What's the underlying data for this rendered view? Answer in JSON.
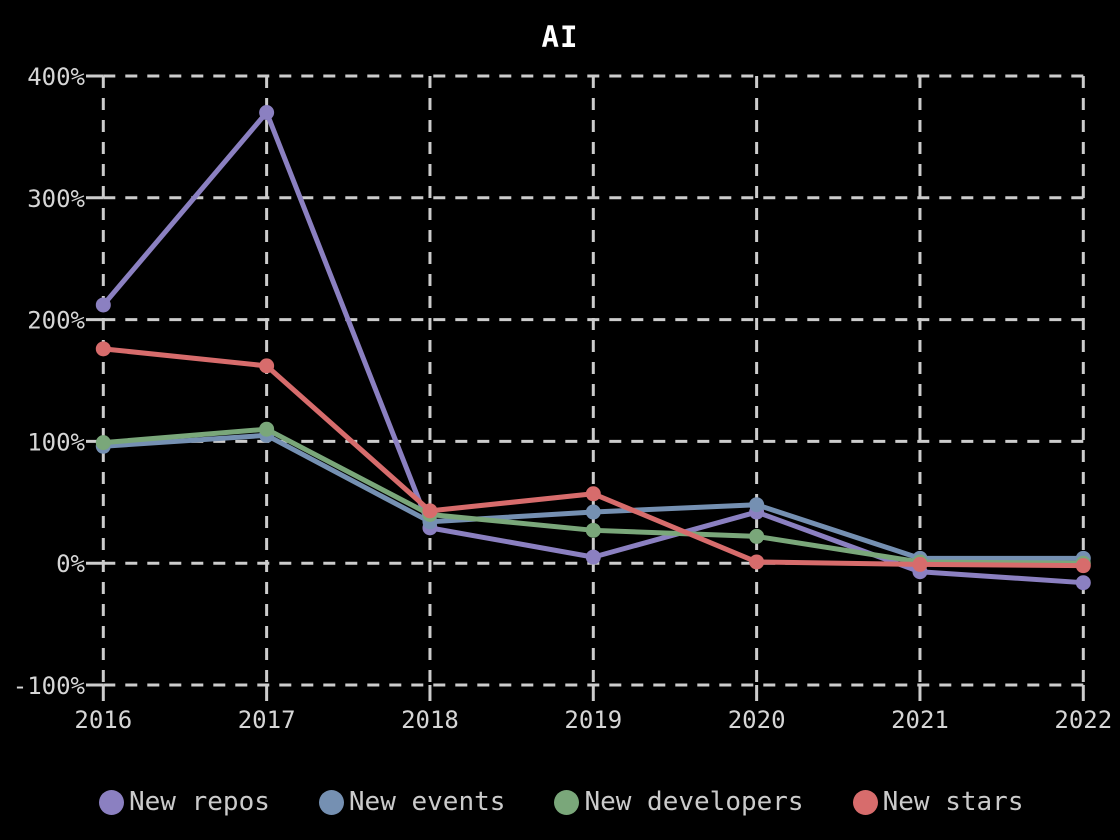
{
  "colors": {
    "background": "#000000",
    "grid": "#cccccc",
    "text": "#d6d6d6",
    "title": "#ffffff",
    "legend_text": "#cbcbcb"
  },
  "chart_data": {
    "type": "line",
    "title": "AI",
    "x": [
      "2016",
      "2017",
      "2018",
      "2019",
      "2020",
      "2021",
      "2022"
    ],
    "xlabel": "",
    "ylabel": "",
    "ylim": [
      -100,
      400
    ],
    "y_tick_values": [
      400,
      300,
      200,
      100,
      0,
      -100
    ],
    "y_tick_labels": [
      "400%",
      "300%",
      "200%",
      "100%",
      "0%",
      "-100%"
    ],
    "grid": true,
    "grid_style": "dashed",
    "legend_position": "bottom",
    "series": [
      {
        "name": "New repos",
        "color": "#8b80c1",
        "values": [
          212,
          370,
          29,
          5,
          42,
          -7,
          -16
        ]
      },
      {
        "name": "New events",
        "color": "#7590b2",
        "values": [
          96,
          105,
          34,
          42,
          48,
          4,
          4
        ]
      },
      {
        "name": "New developers",
        "color": "#7aa77a",
        "values": [
          99,
          110,
          40,
          27,
          22,
          1,
          0
        ]
      },
      {
        "name": "New stars",
        "color": "#d76c6c",
        "values": [
          176,
          162,
          43,
          57,
          1,
          -1,
          -2
        ]
      }
    ]
  }
}
